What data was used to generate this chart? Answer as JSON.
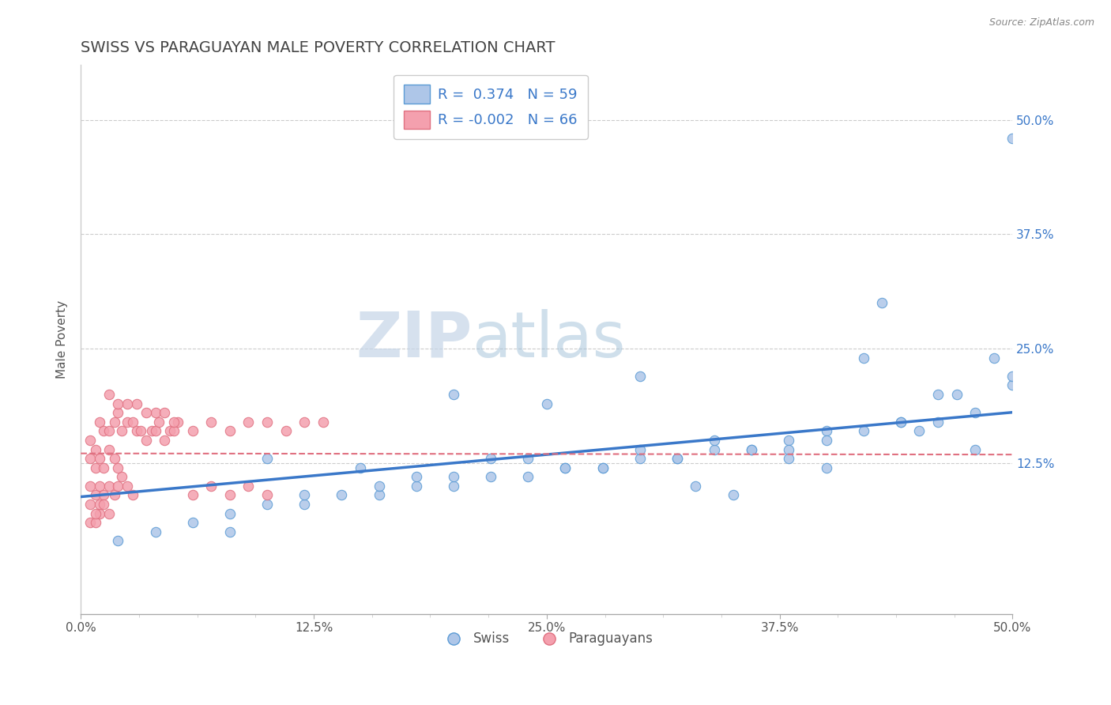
{
  "title": "SWISS VS PARAGUAYAN MALE POVERTY CORRELATION CHART",
  "source": "Source: ZipAtlas.com",
  "ylabel": "Male Poverty",
  "xlim": [
    0.0,
    0.5
  ],
  "ylim": [
    -0.04,
    0.56
  ],
  "xtick_labels": [
    "0.0%",
    "",
    "",
    "",
    "12.5%",
    "",
    "",
    "",
    "25.0%",
    "",
    "",
    "",
    "37.5%",
    "",
    "",
    "",
    "50.0%"
  ],
  "xtick_vals": [
    0.0,
    0.03125,
    0.0625,
    0.09375,
    0.125,
    0.15625,
    0.1875,
    0.21875,
    0.25,
    0.28125,
    0.3125,
    0.34375,
    0.375,
    0.40625,
    0.4375,
    0.46875,
    0.5
  ],
  "ytick_vals": [
    0.125,
    0.25,
    0.375,
    0.5
  ],
  "right_ytick_labels": [
    "12.5%",
    "25.0%",
    "37.5%",
    "50.0%"
  ],
  "swiss_color": "#aec6e8",
  "swiss_edge_color": "#5b9bd5",
  "paraguayan_color": "#f4a0ae",
  "paraguayan_edge_color": "#e07080",
  "swiss_line_color": "#3a78c9",
  "paraguayan_line_color": "#e07080",
  "R_swiss": 0.374,
  "N_swiss": 59,
  "R_paraguayan": -0.002,
  "N_paraguayan": 66,
  "watermark_zip": "ZIP",
  "watermark_atlas": "atlas",
  "swiss_x": [
    0.02,
    0.04,
    0.06,
    0.08,
    0.1,
    0.12,
    0.14,
    0.16,
    0.18,
    0.2,
    0.22,
    0.24,
    0.26,
    0.28,
    0.3,
    0.32,
    0.34,
    0.36,
    0.38,
    0.4,
    0.42,
    0.44,
    0.46,
    0.48,
    0.5,
    0.1,
    0.15,
    0.2,
    0.25,
    0.3,
    0.08,
    0.12,
    0.16,
    0.2,
    0.24,
    0.28,
    0.32,
    0.36,
    0.4,
    0.44,
    0.18,
    0.22,
    0.26,
    0.3,
    0.34,
    0.38,
    0.42,
    0.46,
    0.5,
    0.35,
    0.4,
    0.45,
    0.48,
    0.5,
    0.43,
    0.47,
    0.49,
    0.33,
    0.38
  ],
  "swiss_y": [
    0.04,
    0.05,
    0.06,
    0.07,
    0.08,
    0.08,
    0.09,
    0.09,
    0.1,
    0.1,
    0.11,
    0.11,
    0.12,
    0.12,
    0.13,
    0.13,
    0.14,
    0.14,
    0.15,
    0.16,
    0.16,
    0.17,
    0.17,
    0.18,
    0.21,
    0.13,
    0.12,
    0.2,
    0.19,
    0.22,
    0.05,
    0.09,
    0.1,
    0.11,
    0.13,
    0.12,
    0.13,
    0.14,
    0.15,
    0.17,
    0.11,
    0.13,
    0.12,
    0.14,
    0.15,
    0.14,
    0.24,
    0.2,
    0.22,
    0.09,
    0.12,
    0.16,
    0.14,
    0.48,
    0.3,
    0.2,
    0.24,
    0.1,
    0.13
  ],
  "paraguayan_x": [
    0.005,
    0.008,
    0.01,
    0.012,
    0.015,
    0.018,
    0.02,
    0.022,
    0.025,
    0.028,
    0.03,
    0.032,
    0.035,
    0.038,
    0.04,
    0.042,
    0.045,
    0.048,
    0.05,
    0.052,
    0.005,
    0.008,
    0.01,
    0.012,
    0.015,
    0.018,
    0.02,
    0.022,
    0.025,
    0.028,
    0.005,
    0.008,
    0.01,
    0.012,
    0.015,
    0.018,
    0.02,
    0.005,
    0.008,
    0.01,
    0.005,
    0.008,
    0.01,
    0.012,
    0.015,
    0.06,
    0.07,
    0.08,
    0.09,
    0.1,
    0.06,
    0.07,
    0.08,
    0.09,
    0.1,
    0.11,
    0.12,
    0.13,
    0.05,
    0.04,
    0.03,
    0.025,
    0.015,
    0.02,
    0.035,
    0.045
  ],
  "paraguayan_y": [
    0.15,
    0.14,
    0.17,
    0.16,
    0.16,
    0.17,
    0.18,
    0.16,
    0.17,
    0.17,
    0.16,
    0.16,
    0.15,
    0.16,
    0.16,
    0.17,
    0.15,
    0.16,
    0.16,
    0.17,
    0.1,
    0.09,
    0.1,
    0.09,
    0.1,
    0.09,
    0.1,
    0.11,
    0.1,
    0.09,
    0.13,
    0.12,
    0.13,
    0.12,
    0.14,
    0.13,
    0.12,
    0.06,
    0.06,
    0.07,
    0.08,
    0.07,
    0.08,
    0.08,
    0.07,
    0.09,
    0.1,
    0.09,
    0.1,
    0.09,
    0.16,
    0.17,
    0.16,
    0.17,
    0.17,
    0.16,
    0.17,
    0.17,
    0.17,
    0.18,
    0.19,
    0.19,
    0.2,
    0.19,
    0.18,
    0.18
  ]
}
